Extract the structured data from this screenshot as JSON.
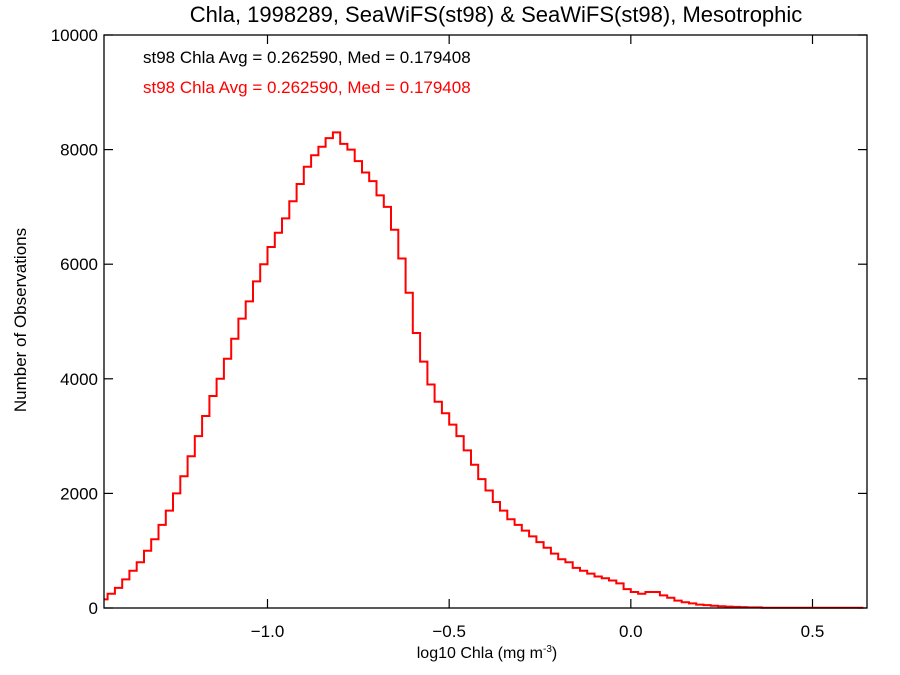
{
  "chart_data": {
    "type": "line",
    "title": "Chla, 1998289, SeaWiFS(st98) & SeaWiFS(st98), Mesotrophic",
    "xlabel": "log10 Chla (mg m",
    "xlabel_sup": "-3",
    "xlabel_close": ")",
    "ylabel": "Number of Observations",
    "xlim": [
      -1.45,
      0.65
    ],
    "ylim": [
      0,
      10000
    ],
    "xticks": [
      -1.0,
      -0.5,
      0.0,
      0.5
    ],
    "xtick_labels": [
      "−1.0",
      "−0.5",
      "0.0",
      "0.5"
    ],
    "yticks": [
      0,
      2000,
      4000,
      6000,
      8000,
      10000
    ],
    "ytick_labels": [
      "0",
      "2000",
      "4000",
      "6000",
      "8000",
      "10000"
    ],
    "grid": false,
    "legend_position": "top-left",
    "annotations": [
      {
        "text": "st98 Chla Avg = 0.262590, Med = 0.179408",
        "color": "#000000"
      },
      {
        "text": "st98 Chla Avg = 0.262590, Med = 0.179408",
        "color": "#ff0000"
      }
    ],
    "series": [
      {
        "color": "#ff0000",
        "step": true,
        "x": [
          -1.45,
          -1.43,
          -1.41,
          -1.39,
          -1.37,
          -1.35,
          -1.33,
          -1.31,
          -1.29,
          -1.27,
          -1.25,
          -1.23,
          -1.21,
          -1.19,
          -1.17,
          -1.15,
          -1.13,
          -1.11,
          -1.09,
          -1.07,
          -1.05,
          -1.03,
          -1.01,
          -0.99,
          -0.97,
          -0.95,
          -0.93,
          -0.91,
          -0.89,
          -0.87,
          -0.85,
          -0.83,
          -0.81,
          -0.79,
          -0.77,
          -0.75,
          -0.73,
          -0.71,
          -0.69,
          -0.67,
          -0.65,
          -0.63,
          -0.61,
          -0.59,
          -0.57,
          -0.55,
          -0.53,
          -0.51,
          -0.49,
          -0.47,
          -0.45,
          -0.43,
          -0.41,
          -0.39,
          -0.37,
          -0.35,
          -0.33,
          -0.31,
          -0.29,
          -0.27,
          -0.25,
          -0.23,
          -0.21,
          -0.19,
          -0.17,
          -0.15,
          -0.13,
          -0.11,
          -0.09,
          -0.07,
          -0.05,
          -0.03,
          -0.01,
          0.01,
          0.03,
          0.05,
          0.07,
          0.09,
          0.11,
          0.13,
          0.15,
          0.17,
          0.19,
          0.21,
          0.23,
          0.25,
          0.27,
          0.29,
          0.31,
          0.33,
          0.35,
          0.37,
          0.39,
          0.41,
          0.43,
          0.45,
          0.47,
          0.49,
          0.51,
          0.53,
          0.55,
          0.57,
          0.59,
          0.61,
          0.63
        ],
        "y": [
          150,
          250,
          350,
          500,
          650,
          800,
          1000,
          1200,
          1450,
          1700,
          2000,
          2300,
          2650,
          3000,
          3350,
          3700,
          4000,
          4350,
          4700,
          5050,
          5350,
          5700,
          6000,
          6300,
          6550,
          6800,
          7100,
          7400,
          7700,
          7900,
          8050,
          8200,
          8300,
          8100,
          8000,
          7800,
          7600,
          7450,
          7200,
          7000,
          6600,
          6100,
          5500,
          4800,
          4300,
          3900,
          3600,
          3400,
          3200,
          3000,
          2750,
          2500,
          2250,
          2050,
          1850,
          1700,
          1550,
          1450,
          1350,
          1250,
          1150,
          1050,
          950,
          850,
          800,
          700,
          650,
          600,
          550,
          520,
          480,
          430,
          330,
          280,
          250,
          280,
          280,
          220,
          180,
          130,
          100,
          80,
          60,
          50,
          40,
          30,
          25,
          20,
          15,
          10,
          10,
          5,
          5,
          5,
          5,
          5,
          5,
          5,
          5,
          5,
          5,
          5,
          5,
          5,
          5
        ]
      }
    ]
  }
}
